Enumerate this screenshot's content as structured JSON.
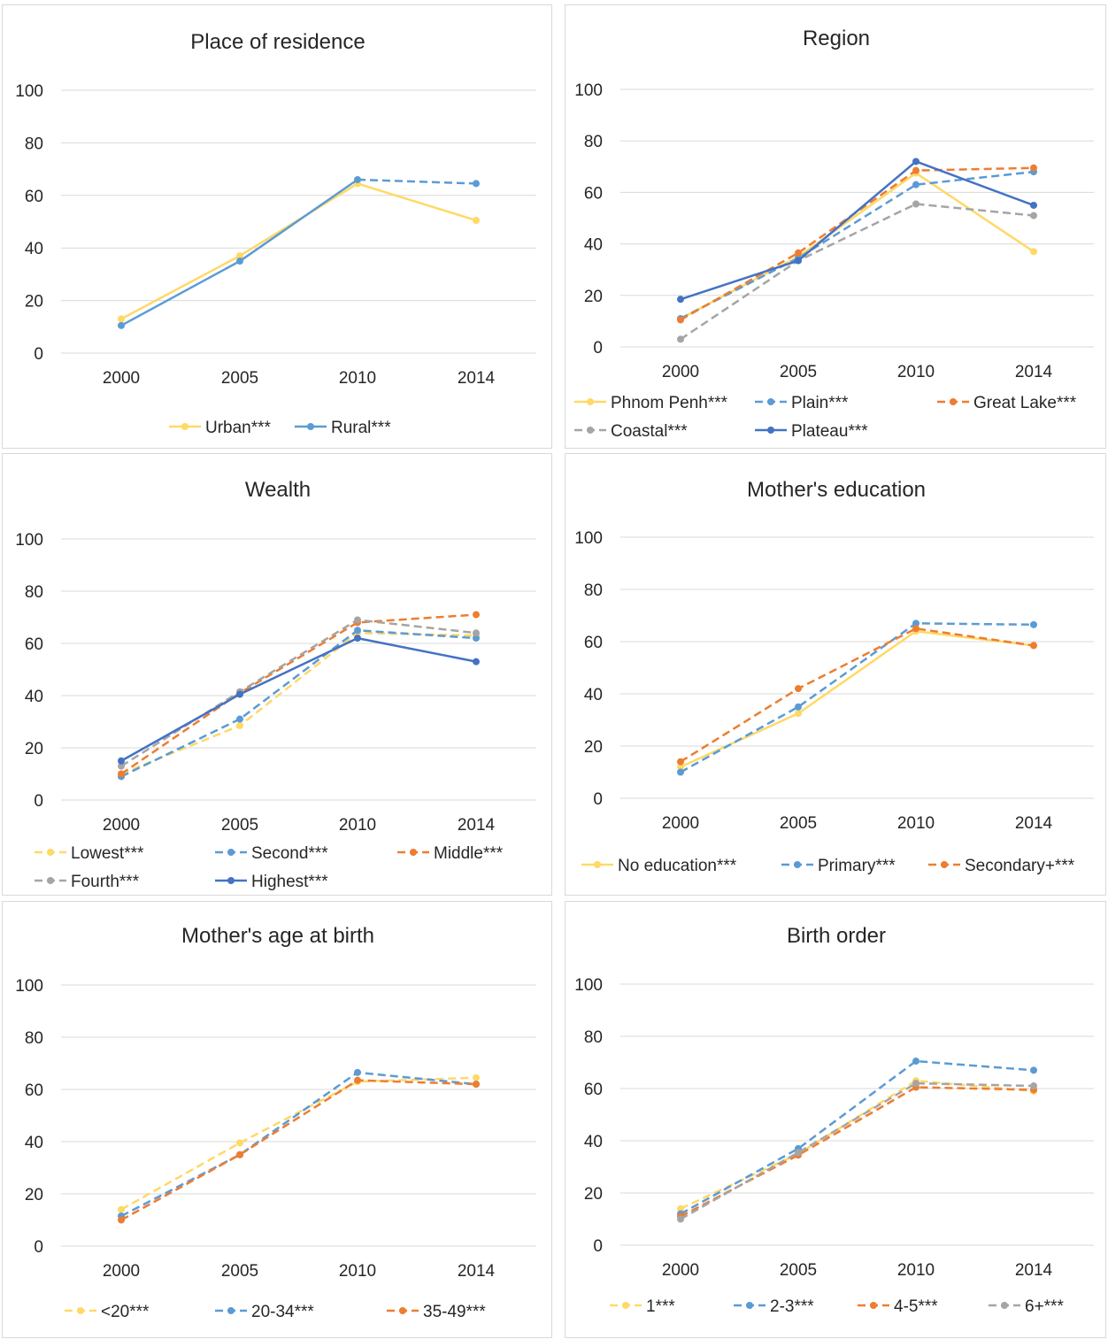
{
  "chart_data": [
    {
      "type": "line",
      "title": "Place of residence",
      "categories": [
        "2000",
        "2005",
        "2010",
        "2014"
      ],
      "yticks": [
        "0",
        "20",
        "40",
        "60",
        "80",
        "100"
      ],
      "ylim": [
        0,
        100
      ],
      "grid": true,
      "legend_position": "bottom",
      "series": [
        {
          "name": "Urban***",
          "values": [
            13,
            37,
            64.5,
            50.5
          ],
          "color": "#ffd966",
          "dash": false
        },
        {
          "name": "Rural***",
          "values": [
            10.5,
            35,
            66,
            64.5
          ],
          "color": "#5b9bd5",
          "dash": false,
          "dash_last": true
        }
      ]
    },
    {
      "type": "line",
      "title": "Region",
      "categories": [
        "2000",
        "2005",
        "2010",
        "2014"
      ],
      "yticks": [
        "0",
        "20",
        "40",
        "60",
        "80",
        "100"
      ],
      "ylim": [
        0,
        100
      ],
      "grid": true,
      "legend_position": "bottom",
      "series": [
        {
          "name": "Phnom Penh***",
          "values": [
            11,
            35,
            67.5,
            37
          ],
          "color": "#ffd966",
          "dash": false
        },
        {
          "name": "Plain***",
          "values": [
            11,
            34.5,
            63,
            68
          ],
          "color": "#5b9bd5",
          "dash": true
        },
        {
          "name": "Great Lake***",
          "values": [
            10.5,
            36.5,
            68.5,
            69.5
          ],
          "color": "#ed7d31",
          "dash": true
        },
        {
          "name": "Coastal***",
          "values": [
            3,
            33.5,
            55.5,
            51
          ],
          "color": "#a5a5a5",
          "dash": true
        },
        {
          "name": "Plateau***",
          "values": [
            18.5,
            33.5,
            72,
            55
          ],
          "color": "#4472c4",
          "dash": false
        }
      ]
    },
    {
      "type": "line",
      "title": "Wealth",
      "categories": [
        "2000",
        "2005",
        "2010",
        "2014"
      ],
      "yticks": [
        "0",
        "20",
        "40",
        "60",
        "80",
        "100"
      ],
      "ylim": [
        0,
        100
      ],
      "grid": true,
      "legend_position": "bottom",
      "series": [
        {
          "name": "Lowest***",
          "values": [
            10,
            28.5,
            64,
            63
          ],
          "color": "#ffd966",
          "dash": true
        },
        {
          "name": "Second***",
          "values": [
            9,
            31,
            65,
            62
          ],
          "color": "#5b9bd5",
          "dash": true
        },
        {
          "name": "Middle***",
          "values": [
            10,
            41,
            68,
            71
          ],
          "color": "#ed7d31",
          "dash": true
        },
        {
          "name": "Fourth***",
          "values": [
            13,
            41.5,
            69,
            64
          ],
          "color": "#a5a5a5",
          "dash": true
        },
        {
          "name": "Highest***",
          "values": [
            15,
            40.5,
            62,
            53
          ],
          "color": "#4472c4",
          "dash": false
        }
      ]
    },
    {
      "type": "line",
      "title": "Mother's education",
      "categories": [
        "2000",
        "2005",
        "2010",
        "2014"
      ],
      "yticks": [
        "0",
        "20",
        "40",
        "60",
        "80",
        "100"
      ],
      "ylim": [
        0,
        100
      ],
      "grid": true,
      "legend_position": "bottom",
      "series": [
        {
          "name": "No education***",
          "values": [
            12,
            32.5,
            64,
            58.5
          ],
          "color": "#ffd966",
          "dash": false
        },
        {
          "name": "Primary***",
          "values": [
            10,
            35,
            67,
            66.5
          ],
          "color": "#5b9bd5",
          "dash": true
        },
        {
          "name": "Secondary+***",
          "values": [
            14,
            42,
            65,
            58.5
          ],
          "color": "#ed7d31",
          "dash": true
        }
      ]
    },
    {
      "type": "line",
      "title": "Mother's age at birth",
      "categories": [
        "2000",
        "2005",
        "2010",
        "2014"
      ],
      "yticks": [
        "0",
        "20",
        "40",
        "60",
        "80",
        "100"
      ],
      "ylim": [
        0,
        100
      ],
      "grid": true,
      "legend_position": "bottom",
      "series": [
        {
          "name": "<20***",
          "values": [
            14,
            39.5,
            63,
            64.5
          ],
          "color": "#ffd966",
          "dash": true
        },
        {
          "name": "20-34***",
          "values": [
            11.5,
            35,
            66.5,
            62
          ],
          "color": "#5b9bd5",
          "dash": true
        },
        {
          "name": "35-49***",
          "values": [
            10,
            35,
            63.5,
            62
          ],
          "color": "#ed7d31",
          "dash": true
        }
      ]
    },
    {
      "type": "line",
      "title": "Birth order",
      "categories": [
        "2000",
        "2005",
        "2010",
        "2014"
      ],
      "yticks": [
        "0",
        "20",
        "40",
        "60",
        "80",
        "100"
      ],
      "ylim": [
        0,
        100
      ],
      "grid": true,
      "legend_position": "bottom",
      "series": [
        {
          "name": "1***",
          "values": [
            14,
            35,
            63,
            59
          ],
          "color": "#ffd966",
          "dash": true
        },
        {
          "name": "2-3***",
          "values": [
            12,
            37,
            70.5,
            67
          ],
          "color": "#5b9bd5",
          "dash": true
        },
        {
          "name": "4-5***",
          "values": [
            11,
            34.5,
            60.5,
            59.5
          ],
          "color": "#ed7d31",
          "dash": true
        },
        {
          "name": "6+***",
          "values": [
            10,
            35.5,
            62,
            61
          ],
          "color": "#a5a5a5",
          "dash": true
        }
      ]
    }
  ]
}
